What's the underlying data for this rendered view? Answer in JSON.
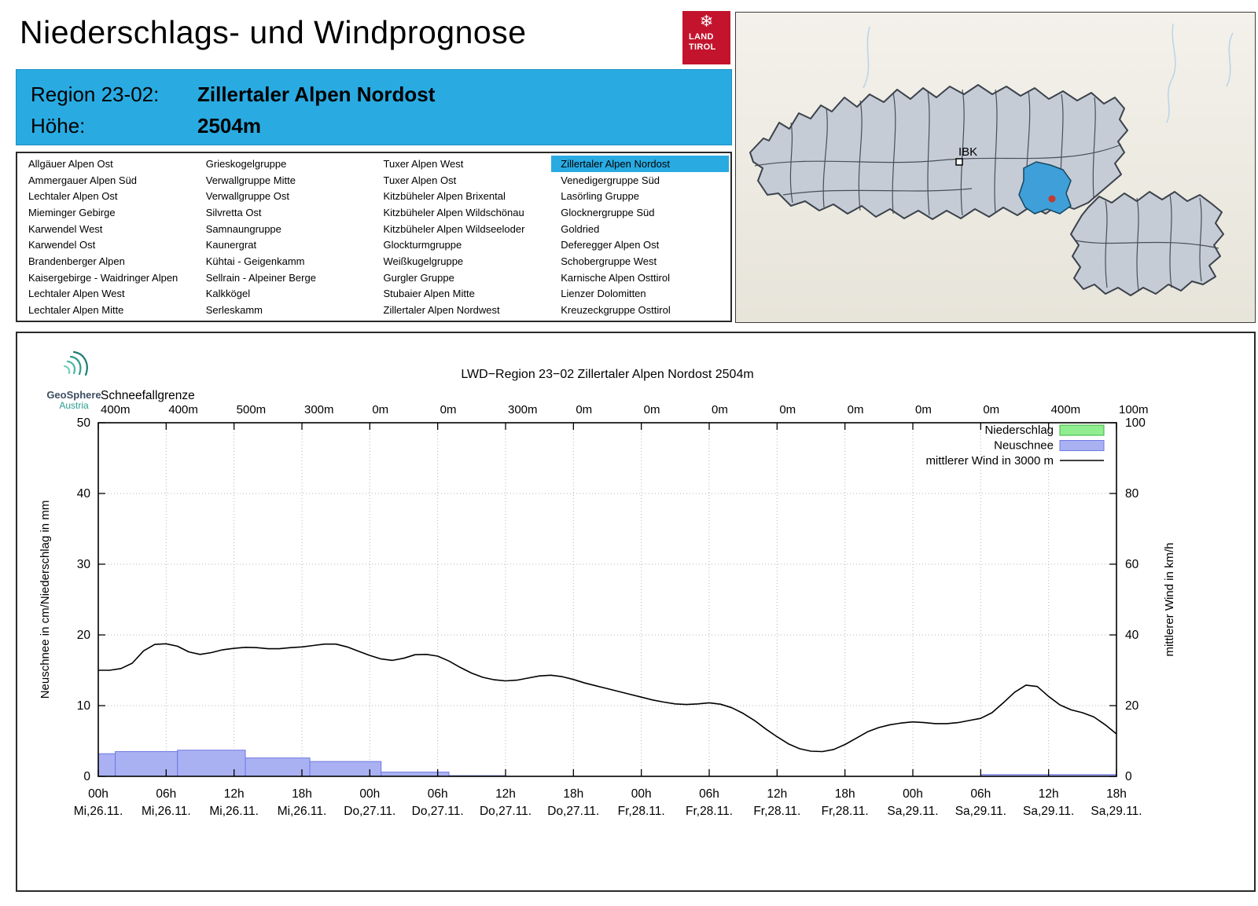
{
  "page": {
    "title": "Niederschlags- und Windprognose"
  },
  "logo_tirol": {
    "icon": "❄",
    "line1": "LAND",
    "line2": "TIROL",
    "color": "#c3132d"
  },
  "banner": {
    "region_label": "Region 23-02:",
    "region_value": "Zillertaler Alpen Nordost",
    "altitude_label": "Höhe:",
    "altitude_value": "2504m",
    "background": "#29abe2"
  },
  "region_list": {
    "selected": "Zillertaler Alpen Nordost",
    "highlight_color": "#29abe2",
    "columns": [
      [
        "Allgäuer Alpen Ost",
        "Ammergauer Alpen Süd",
        "Lechtaler Alpen Ost",
        "Mieminger Gebirge",
        "Karwendel West",
        "Karwendel Ost",
        "Brandenberger Alpen",
        "Kaisergebirge - Waidringer Alpen",
        "Lechtaler Alpen West",
        "Lechtaler Alpen Mitte"
      ],
      [
        "Grieskogelgruppe",
        "Verwallgruppe Mitte",
        "Verwallgruppe Ost",
        "Silvretta Ost",
        "Samnaungruppe",
        "Kaunergrat",
        "Kühtai - Geigenkamm",
        "Sellrain - Alpeiner Berge",
        "Kalkkögel",
        "Serleskamm"
      ],
      [
        "Tuxer Alpen West",
        "Tuxer Alpen Ost",
        "Kitzbüheler Alpen Brixental",
        "Kitzbüheler Alpen Wildschönau",
        "Kitzbüheler Alpen Wildseeloder",
        "Glockturmgruppe",
        "Weißkugelgruppe",
        "Gurgler Gruppe",
        "Stubaier Alpen Mitte",
        "Zillertaler Alpen Nordwest"
      ],
      [
        "Zillertaler Alpen Nordost",
        "Venedigergruppe Süd",
        "Lasörling Gruppe",
        "Glocknergruppe Süd",
        "Goldried",
        "Deferegger Alpen Ost",
        "Schobergruppe West",
        "Karnische Alpen Osttirol",
        "Lienzer Dolomitten",
        "Kreuzeckgruppe Osttirol"
      ]
    ]
  },
  "map": {
    "city_label": "IBK",
    "highlight_color": "#3f9fd8",
    "marker_color": "#c43a30",
    "land_fill": "#c5ccd6",
    "border_color": "#3c424b"
  },
  "geosphere": {
    "name": "GeoSphere",
    "sub": "Austria"
  },
  "chart_data": {
    "type": "bar+line",
    "title": "LWD−Region 23−02 Zillertaler Alpen Nordost 2504m",
    "ylabel_left": "Neuschnee in cm/Niederschlag in mm",
    "ylabel_right": "mittlerer Wind in km/h",
    "ylim_left": [
      0,
      50
    ],
    "ylim_right": [
      0,
      100
    ],
    "hours_total": 90,
    "grid": true,
    "legend_position": "top-right",
    "schneefallgrenze_label": "Schneefallgrenze",
    "schneefallgrenze": [
      "400m",
      "400m",
      "500m",
      "300m",
      "0m",
      "0m",
      "300m",
      "0m",
      "0m",
      "0m",
      "0m",
      "0m",
      "0m",
      "0m",
      "400m",
      "100m"
    ],
    "x_ticks_hours": [
      "00h",
      "06h",
      "12h",
      "18h",
      "00h",
      "06h",
      "12h",
      "18h",
      "00h",
      "06h",
      "12h",
      "18h",
      "00h",
      "06h",
      "12h",
      "18h"
    ],
    "x_ticks_days": [
      "Mi,26.11.",
      "Mi,26.11.",
      "Mi,26.11.",
      "Mi,26.11.",
      "Do,27.11.",
      "Do,27.11.",
      "Do,27.11.",
      "Do,27.11.",
      "Fr,28.11.",
      "Fr,28.11.",
      "Fr,28.11.",
      "Fr,28.11.",
      "Sa,29.11.",
      "Sa,29.11.",
      "Sa,29.11.",
      "Sa,29.11."
    ],
    "legend": [
      {
        "label": "Niederschlag",
        "type": "box",
        "fill": "#90ee90",
        "stroke": "#3cb43c"
      },
      {
        "label": "Neuschnee",
        "type": "box",
        "fill": "#aab1f3",
        "stroke": "#6e79e0"
      },
      {
        "label": "mittlerer Wind in 3000 m",
        "type": "line",
        "color": "#000000"
      }
    ],
    "colors": {
      "neuschnee_fill": "#aab1f3",
      "neuschnee_stroke": "#6e79e0",
      "wind": "#000000",
      "grid": "#b5b5b5"
    },
    "niederschlag_bars": [],
    "neuschnee_bars": [
      {
        "h0": 0,
        "h1": 1.5,
        "cm": 3.2
      },
      {
        "h0": 1.5,
        "h1": 7,
        "cm": 3.5
      },
      {
        "h0": 7,
        "h1": 13,
        "cm": 3.7
      },
      {
        "h0": 13,
        "h1": 18.7,
        "cm": 2.6
      },
      {
        "h0": 18.7,
        "h1": 25,
        "cm": 2.1
      },
      {
        "h0": 25,
        "h1": 31,
        "cm": 0.6
      },
      {
        "h0": 31,
        "h1": 36,
        "cm": 0.1
      },
      {
        "h0": 78,
        "h1": 90,
        "cm": 0.25
      }
    ],
    "wind_kmh": [
      30,
      30,
      30.5,
      32,
      35.5,
      37.3,
      37.5,
      36.8,
      35.2,
      34.5,
      35,
      35.8,
      36.2,
      36.5,
      36.4,
      36.1,
      36.1,
      36.4,
      36.6,
      37,
      37.4,
      37.4,
      36.6,
      35.4,
      34.2,
      33.2,
      32.8,
      33.4,
      34.4,
      34.5,
      34,
      32.6,
      30.8,
      29.2,
      28,
      27.3,
      27,
      27.2,
      27.8,
      28.4,
      28.6,
      28.2,
      27.4,
      26.4,
      25.6,
      24.8,
      24,
      23.2,
      22.4,
      21.6,
      21,
      20.5,
      20.3,
      20.5,
      20.8,
      20.4,
      19.4,
      17.8,
      15.8,
      13.4,
      11.2,
      9.2,
      7.8,
      7.1,
      7,
      7.6,
      9,
      10.8,
      12.6,
      13.8,
      14.6,
      15.1,
      15.4,
      15.2,
      14.9,
      14.9,
      15.2,
      15.8,
      16.4,
      18,
      20.8,
      23.8,
      25.8,
      25.4,
      22.6,
      20.2,
      18.8,
      18,
      16.8,
      14.6,
      12
    ]
  }
}
